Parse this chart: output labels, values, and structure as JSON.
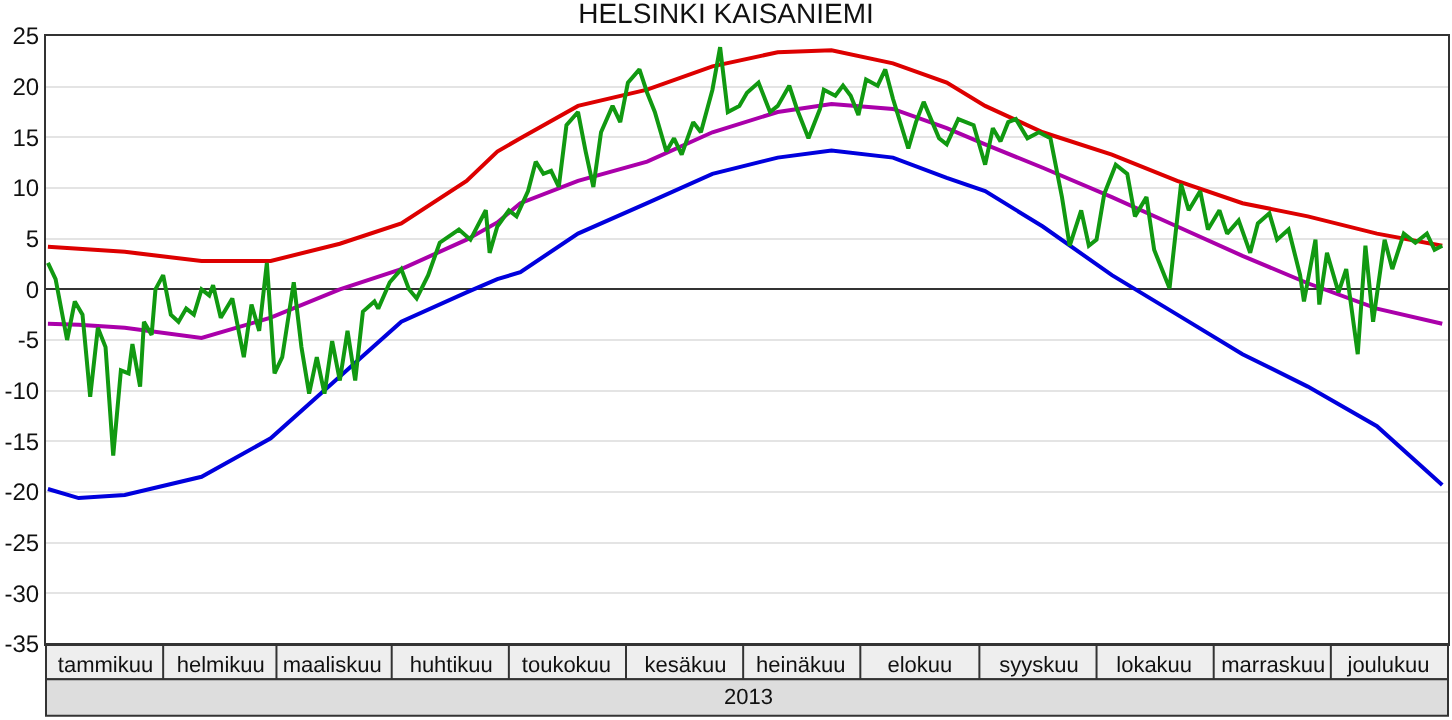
{
  "chart_data": {
    "type": "line",
    "title": "HELSINKI KAISANIEMI",
    "xlabel": "2013",
    "categories": [
      null,
      null,
      null,
      null,
      null,
      null,
      null,
      null,
      null,
      null,
      null,
      null,
      null,
      null,
      null,
      "tammikuu",
      null,
      null,
      null,
      null,
      null,
      null,
      null,
      null,
      null,
      null,
      null,
      null,
      null,
      null,
      null,
      null,
      null,
      null,
      null,
      null,
      null,
      null,
      null,
      null,
      null,
      null,
      null,
      null,
      null,
      "helmikuu",
      null,
      null,
      null,
      null,
      null,
      null,
      null,
      null,
      null,
      null,
      null,
      null,
      null,
      null,
      null,
      null,
      null,
      null,
      null,
      null,
      null,
      null,
      null,
      null,
      null,
      null,
      null,
      null,
      "maaliskuu",
      null,
      null,
      null,
      null,
      null,
      null,
      null,
      null,
      null,
      null,
      null,
      null,
      null,
      null,
      null,
      null,
      null,
      null,
      null,
      null,
      null,
      null,
      null,
      null,
      null,
      null,
      null,
      null,
      null,
      null,
      "huhtikuu",
      null,
      null,
      null,
      null,
      null,
      null,
      null,
      null,
      null,
      null,
      null,
      null,
      null,
      null,
      null,
      null,
      null,
      null,
      null,
      null,
      null,
      null,
      null,
      null,
      null,
      null,
      null,
      null,
      null,
      "toukokuu",
      null,
      null,
      null,
      null,
      null,
      null,
      null,
      null,
      null,
      null,
      null,
      null,
      null,
      null,
      null,
      null,
      null,
      null,
      null,
      null,
      null,
      null,
      null,
      null,
      null,
      null,
      null,
      null,
      null,
      null,
      "kesäkuu",
      null,
      null,
      null,
      null,
      null,
      null,
      null,
      null,
      null,
      null,
      null,
      null,
      null,
      null,
      null,
      null,
      null,
      null,
      null,
      null,
      null,
      null,
      null,
      null,
      null,
      null,
      null,
      null,
      null,
      "heinäkuu",
      null,
      null,
      null,
      null,
      null,
      null,
      null,
      null,
      null,
      null,
      null,
      null,
      null,
      null,
      null,
      null,
      null,
      null,
      null,
      null,
      null,
      null,
      null,
      null,
      null,
      null,
      null,
      null,
      null,
      null,
      "elokuu",
      null,
      null,
      null,
      null,
      null,
      null,
      null,
      null,
      null,
      null,
      null,
      null,
      null,
      null,
      null,
      null,
      null,
      null,
      null,
      null,
      null,
      null,
      null,
      null,
      null,
      null,
      null,
      null,
      null,
      null,
      "syyskuu",
      null,
      null,
      null,
      null,
      null,
      null,
      null,
      null,
      null,
      null,
      null,
      null,
      null,
      null,
      null,
      null,
      null,
      null,
      null,
      null,
      null,
      null,
      null,
      null,
      null,
      null,
      null,
      null,
      null,
      "lokakuu",
      null,
      null,
      null,
      null,
      null,
      null,
      null,
      null,
      null,
      null,
      null,
      null,
      null,
      null,
      null,
      null,
      null,
      null,
      null,
      null,
      null,
      null,
      null,
      null,
      null,
      null,
      null,
      null,
      null,
      null,
      "marraskuu",
      null,
      null,
      null,
      null,
      null,
      null,
      null,
      null,
      null,
      null,
      null,
      null,
      null,
      null,
      null,
      null,
      null,
      null,
      null,
      null,
      null,
      null,
      null,
      null,
      null,
      null,
      null,
      null,
      null,
      "joulukuu",
      null,
      null,
      null,
      null,
      null,
      null,
      null,
      null,
      null,
      null,
      null,
      null,
      null,
      null,
      null
    ],
    "ylim": [
      -35,
      25
    ],
    "yticks": [
      -35,
      -30,
      -25,
      -20,
      -15,
      -10,
      -5,
      0,
      5,
      10,
      15,
      20,
      25
    ],
    "grid": "y",
    "marker": "none",
    "line_style": "solid",
    "series": [
      {
        "color": "#dd0000",
        "values": [
          4.2,
          null,
          null,
          null,
          null,
          null,
          null,
          null,
          4.0,
          null,
          null,
          null,
          null,
          null,
          null,
          null,
          null,
          null,
          null,
          null,
          3.7,
          null,
          null,
          null,
          null,
          null,
          null,
          null,
          null,
          null,
          null,
          null,
          null,
          null,
          null,
          null,
          null,
          null,
          null,
          null,
          2.8,
          null,
          null,
          null,
          null,
          null,
          null,
          null,
          null,
          null,
          null,
          null,
          null,
          null,
          null,
          null,
          null,
          null,
          2.8,
          null,
          null,
          null,
          null,
          null,
          null,
          null,
          null,
          null,
          null,
          null,
          null,
          null,
          null,
          null,
          null,
          null,
          4.5,
          null,
          null,
          null,
          null,
          null,
          null,
          null,
          null,
          null,
          null,
          null,
          null,
          null,
          null,
          null,
          6.5,
          null,
          null,
          null,
          null,
          null,
          null,
          null,
          null,
          null,
          null,
          null,
          null,
          null,
          null,
          null,
          null,
          10.7,
          null,
          null,
          null,
          null,
          null,
          null,
          null,
          13.6,
          null,
          null,
          null,
          null,
          null,
          14.9,
          null,
          null,
          null,
          null,
          null,
          null,
          null,
          null,
          null,
          null,
          null,
          null,
          null,
          null,
          18.1,
          null,
          null,
          null,
          null,
          null,
          null,
          null,
          null,
          null,
          null,
          null,
          null,
          null,
          null,
          null,
          null,
          null,
          19.7,
          null,
          null,
          null,
          null,
          null,
          null,
          null,
          null,
          null,
          null,
          null,
          null,
          null,
          null,
          null,
          null,
          22,
          null,
          null,
          null,
          null,
          null,
          null,
          null,
          null,
          null,
          null,
          null,
          null,
          null,
          null,
          null,
          null,
          23.4,
          null,
          null,
          null,
          null,
          null,
          null,
          null,
          null,
          null,
          null,
          null,
          null,
          null,
          23.6,
          null,
          null,
          null,
          null,
          null,
          null,
          null,
          null,
          null,
          null,
          null,
          null,
          null,
          null,
          null,
          22.3,
          null,
          null,
          null,
          null,
          null,
          null,
          null,
          null,
          null,
          null,
          null,
          null,
          null,
          20.4,
          null,
          null,
          null,
          null,
          null,
          null,
          null,
          null,
          null,
          18.1,
          null,
          null,
          null,
          null,
          null,
          null,
          null,
          null,
          null,
          null,
          null,
          null,
          null,
          null,
          15.5,
          null,
          null,
          null,
          null,
          null,
          null,
          null,
          null,
          null,
          null,
          null,
          null,
          null,
          null,
          null,
          null,
          null,
          13.3,
          null,
          null,
          null,
          null,
          null,
          null,
          null,
          null,
          null,
          null,
          null,
          null,
          null,
          null,
          null,
          null,
          10.7,
          null,
          null,
          null,
          null,
          null,
          null,
          null,
          null,
          null,
          null,
          null,
          null,
          null,
          null,
          null,
          null,
          8.5,
          null,
          null,
          null,
          null,
          null,
          null,
          null,
          null,
          null,
          null,
          null,
          null,
          null,
          null,
          null,
          null,
          7.2,
          null,
          null,
          null,
          null,
          null,
          null,
          null,
          null,
          null,
          null,
          null,
          null,
          null,
          null,
          null,
          null,
          null,
          5.5,
          null,
          null,
          null,
          null,
          null,
          null,
          null,
          null,
          null,
          null,
          null,
          null,
          null,
          null,
          null,
          null,
          4.3,
          null
        ]
      },
      {
        "color": "#aa00aa",
        "values": [
          -3.4,
          null,
          null,
          null,
          null,
          null,
          null,
          null,
          -3.5,
          null,
          null,
          null,
          null,
          null,
          null,
          null,
          null,
          null,
          null,
          null,
          -3.8,
          null,
          null,
          null,
          null,
          null,
          null,
          null,
          null,
          null,
          null,
          null,
          null,
          null,
          null,
          null,
          null,
          null,
          null,
          null,
          -4.8,
          null,
          null,
          null,
          null,
          null,
          null,
          null,
          null,
          null,
          null,
          null,
          null,
          null,
          null,
          null,
          null,
          null,
          -2.8,
          null,
          null,
          null,
          null,
          null,
          null,
          null,
          null,
          null,
          null,
          null,
          null,
          null,
          null,
          null,
          null,
          null,
          0,
          null,
          null,
          null,
          null,
          null,
          null,
          null,
          null,
          null,
          null,
          null,
          null,
          null,
          null,
          null,
          2,
          null,
          null,
          null,
          null,
          null,
          null,
          null,
          null,
          null,
          null,
          null,
          null,
          null,
          null,
          null,
          null,
          4.9,
          null,
          null,
          null,
          null,
          null,
          null,
          null,
          6.6,
          null,
          null,
          null,
          null,
          null,
          8.5,
          null,
          null,
          null,
          null,
          null,
          null,
          null,
          null,
          null,
          null,
          null,
          null,
          null,
          null,
          10.7,
          null,
          null,
          null,
          null,
          null,
          null,
          null,
          null,
          null,
          null,
          null,
          null,
          null,
          null,
          null,
          null,
          null,
          12.6,
          null,
          null,
          null,
          null,
          null,
          null,
          null,
          null,
          null,
          null,
          null,
          null,
          null,
          null,
          null,
          null,
          15.5,
          null,
          null,
          null,
          null,
          null,
          null,
          null,
          null,
          null,
          null,
          null,
          null,
          null,
          null,
          null,
          null,
          17.5,
          null,
          null,
          null,
          null,
          null,
          null,
          null,
          null,
          null,
          null,
          null,
          null,
          null,
          18.3,
          null,
          null,
          null,
          null,
          null,
          null,
          null,
          null,
          null,
          null,
          null,
          null,
          null,
          null,
          null,
          17.8,
          null,
          null,
          null,
          null,
          null,
          null,
          null,
          null,
          null,
          null,
          null,
          null,
          null,
          15.9,
          null,
          null,
          null,
          null,
          null,
          null,
          null,
          null,
          null,
          14.3,
          null,
          null,
          null,
          null,
          null,
          null,
          null,
          null,
          null,
          null,
          null,
          null,
          null,
          null,
          12,
          null,
          null,
          null,
          null,
          null,
          null,
          null,
          null,
          null,
          null,
          null,
          null,
          null,
          null,
          null,
          null,
          null,
          9.1,
          null,
          null,
          null,
          null,
          null,
          null,
          null,
          null,
          null,
          null,
          null,
          null,
          null,
          null,
          null,
          null,
          6.2,
          null,
          null,
          null,
          null,
          null,
          null,
          null,
          null,
          null,
          null,
          null,
          null,
          null,
          null,
          null,
          null,
          3.3,
          null,
          null,
          null,
          null,
          null,
          null,
          null,
          null,
          null,
          null,
          null,
          null,
          null,
          null,
          null,
          null,
          0.6,
          null,
          null,
          null,
          null,
          null,
          null,
          null,
          null,
          null,
          null,
          null,
          null,
          null,
          null,
          null,
          null,
          null,
          -1.9,
          null,
          null,
          null,
          null,
          null,
          null,
          null,
          null,
          null,
          null,
          null,
          null,
          null,
          null,
          null,
          null,
          -3.4,
          null
        ]
      },
      {
        "color": "#0000dd",
        "values": [
          -19.7,
          null,
          null,
          null,
          null,
          null,
          null,
          null,
          -20.6,
          null,
          null,
          null,
          null,
          null,
          null,
          null,
          null,
          null,
          null,
          null,
          -20.3,
          null,
          null,
          null,
          null,
          null,
          null,
          null,
          null,
          null,
          null,
          null,
          null,
          null,
          null,
          null,
          null,
          null,
          null,
          null,
          -18.5,
          null,
          null,
          null,
          null,
          null,
          null,
          null,
          null,
          null,
          null,
          null,
          null,
          null,
          null,
          null,
          null,
          null,
          -14.7,
          null,
          null,
          null,
          null,
          null,
          null,
          null,
          null,
          null,
          null,
          null,
          null,
          null,
          null,
          null,
          null,
          null,
          -8.6,
          null,
          null,
          null,
          null,
          null,
          null,
          null,
          null,
          null,
          null,
          null,
          null,
          null,
          null,
          null,
          -3.2,
          null,
          null,
          null,
          null,
          null,
          null,
          null,
          null,
          null,
          null,
          null,
          null,
          null,
          null,
          null,
          null,
          -0.3,
          null,
          null,
          null,
          null,
          null,
          null,
          null,
          1,
          null,
          null,
          null,
          null,
          null,
          1.7,
          null,
          null,
          null,
          null,
          null,
          null,
          null,
          null,
          null,
          null,
          null,
          null,
          null,
          null,
          5.5,
          null,
          null,
          null,
          null,
          null,
          null,
          null,
          null,
          null,
          null,
          null,
          null,
          null,
          null,
          null,
          null,
          null,
          8.5,
          null,
          null,
          null,
          null,
          null,
          null,
          null,
          null,
          null,
          null,
          null,
          null,
          null,
          null,
          null,
          null,
          11.4,
          null,
          null,
          null,
          null,
          null,
          null,
          null,
          null,
          null,
          null,
          null,
          null,
          null,
          null,
          null,
          null,
          13,
          null,
          null,
          null,
          null,
          null,
          null,
          null,
          null,
          null,
          null,
          null,
          null,
          null,
          13.7,
          null,
          null,
          null,
          null,
          null,
          null,
          null,
          null,
          null,
          null,
          null,
          null,
          null,
          null,
          null,
          13,
          null,
          null,
          null,
          null,
          null,
          null,
          null,
          null,
          null,
          null,
          null,
          null,
          null,
          11,
          null,
          null,
          null,
          null,
          null,
          null,
          null,
          null,
          null,
          9.7,
          null,
          null,
          null,
          null,
          null,
          null,
          null,
          null,
          null,
          null,
          null,
          null,
          null,
          null,
          6.2,
          null,
          null,
          null,
          null,
          null,
          null,
          null,
          null,
          null,
          null,
          null,
          null,
          null,
          null,
          null,
          null,
          null,
          1.4,
          null,
          null,
          null,
          null,
          null,
          null,
          null,
          null,
          null,
          null,
          null,
          null,
          null,
          null,
          null,
          null,
          -2.5,
          null,
          null,
          null,
          null,
          null,
          null,
          null,
          null,
          null,
          null,
          null,
          null,
          null,
          null,
          null,
          null,
          -6.4,
          null,
          null,
          null,
          null,
          null,
          null,
          null,
          null,
          null,
          null,
          null,
          null,
          null,
          null,
          null,
          null,
          -9.6,
          null,
          null,
          null,
          null,
          null,
          null,
          null,
          null,
          null,
          null,
          null,
          null,
          null,
          null,
          null,
          null,
          null,
          -13.5,
          null,
          null,
          null,
          null,
          null,
          null,
          null,
          null,
          null,
          null,
          null,
          null,
          null,
          null,
          null,
          null,
          -19.3,
          null
        ]
      },
      {
        "color": "#119911",
        "values": [
          2.6,
          null,
          1,
          null,
          null,
          -5,
          null,
          -1.2,
          null,
          -2.5,
          null,
          -10.6,
          null,
          -3.8,
          null,
          -5.7,
          null,
          -16.4,
          null,
          -8,
          null,
          -8.3,
          -5.4,
          null,
          -9.6,
          -3.2,
          null,
          -4.5,
          0,
          null,
          1.4,
          null,
          -2.5,
          null,
          -3.2,
          null,
          -1.9,
          null,
          -2.5,
          null,
          0,
          null,
          -0.6,
          0.4,
          null,
          -2.8,
          null,
          null,
          -0.9,
          null,
          null,
          -6.7,
          null,
          -1.5,
          null,
          -4.1,
          null,
          2.6,
          null,
          -8.3,
          null,
          -6.7,
          null,
          null,
          0.7,
          null,
          -5.7,
          null,
          -10.3,
          null,
          -6.7,
          null,
          -10.3,
          null,
          -5.1,
          null,
          -9,
          null,
          -4.1,
          null,
          -9,
          null,
          -2.2,
          null,
          null,
          -1.2,
          -1.9,
          null,
          null,
          0.7,
          null,
          null,
          2,
          null,
          0,
          null,
          -0.9,
          null,
          null,
          1.4,
          null,
          null,
          4.6,
          null,
          null,
          null,
          null,
          5.9,
          null,
          null,
          4.9,
          null,
          null,
          null,
          7.8,
          3.6,
          null,
          6.2,
          null,
          null,
          7.8,
          null,
          7.2,
          null,
          null,
          9.7,
          null,
          12.6,
          null,
          11.4,
          null,
          11.7,
          null,
          10.1,
          null,
          16.2,
          null,
          null,
          17.5,
          null,
          13.6,
          null,
          10.1,
          null,
          15.5,
          null,
          null,
          18.1,
          null,
          16.5,
          null,
          20.4,
          null,
          null,
          21.7,
          null,
          19.4,
          null,
          17.5,
          null,
          null,
          13.6,
          null,
          14.9,
          null,
          13.3,
          null,
          null,
          16.5,
          null,
          15.5,
          null,
          null,
          19.7,
          null,
          23.9,
          null,
          17.5,
          null,
          null,
          18.1,
          null,
          19.4,
          null,
          null,
          20.4,
          null,
          null,
          17.5,
          null,
          18.1,
          null,
          null,
          20.1,
          null,
          17.8,
          null,
          null,
          14.9,
          null,
          null,
          17.8,
          19.7,
          null,
          null,
          19.1,
          null,
          20.1,
          null,
          19.1,
          null,
          17.2,
          null,
          20.7,
          null,
          null,
          20.1,
          null,
          21.7,
          null,
          18.8,
          null,
          null,
          null,
          13.9,
          null,
          16.5,
          null,
          18.5,
          null,
          null,
          null,
          14.9,
          null,
          14.3,
          null,
          null,
          16.8,
          null,
          null,
          null,
          16.2,
          null,
          null,
          12.3,
          null,
          15.9,
          null,
          14.6,
          null,
          16.5,
          null,
          16.8,
          null,
          null,
          14.9,
          null,
          null,
          15.5,
          null,
          null,
          14.9,
          null,
          null,
          9.1,
          null,
          4.3,
          null,
          null,
          7.8,
          null,
          4.3,
          null,
          4.9,
          null,
          9.4,
          null,
          null,
          12.3,
          null,
          null,
          11.4,
          null,
          7.2,
          null,
          null,
          9.1,
          null,
          3.9,
          null,
          null,
          null,
          0.1,
          null,
          null,
          10.4,
          null,
          7.8,
          null,
          null,
          9.7,
          null,
          5.9,
          null,
          null,
          7.8,
          null,
          5.5,
          null,
          null,
          6.8,
          null,
          null,
          3.6,
          null,
          6.5,
          null,
          null,
          7.5,
          null,
          4.9,
          null,
          null,
          5.9,
          null,
          null,
          1.4,
          -1.2,
          null,
          null,
          4.9,
          -1.5,
          null,
          3.6,
          null,
          null,
          -0.3,
          null,
          2,
          null,
          null,
          -6.4,
          null,
          4.3,
          null,
          -3.2,
          null,
          null,
          4.9,
          null,
          2,
          null,
          null,
          5.5,
          null,
          null,
          4.6,
          null,
          null,
          5.5,
          null,
          3.9,
          null,
          4.3,
          null
        ]
      }
    ]
  }
}
